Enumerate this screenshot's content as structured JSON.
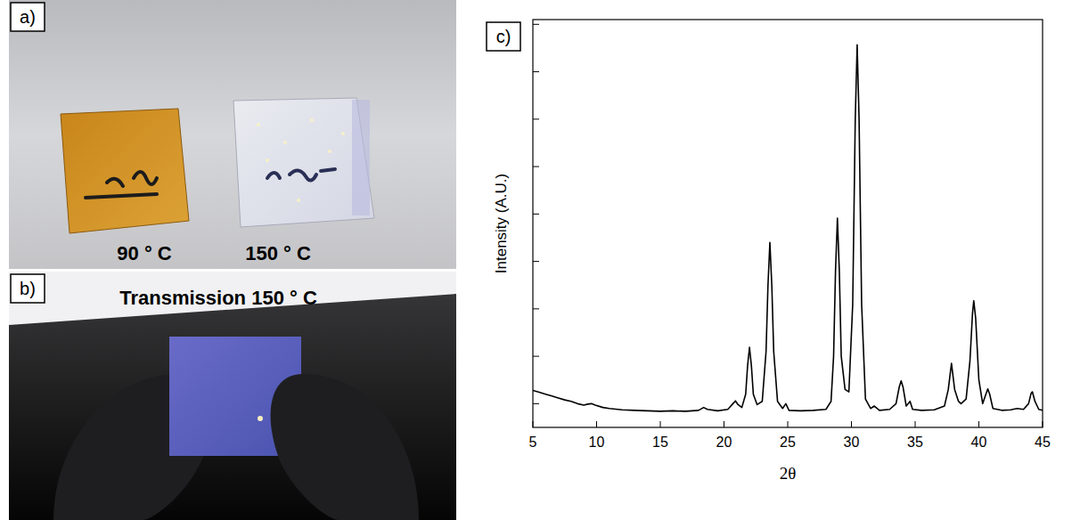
{
  "figure": {
    "panels": [
      {
        "letter": "a)",
        "labels": [
          "90 ° C",
          "150 ° C"
        ]
      },
      {
        "letter": "b)",
        "title": "Transmission 150 ° C"
      },
      {
        "letter": "c)"
      }
    ]
  },
  "chart_data": {
    "type": "line",
    "color": "#000000",
    "x_label": "2θ",
    "y_label": "Intensity (A.U.)",
    "xlim": [
      5,
      45
    ],
    "xticks": [
      5,
      10,
      15,
      20,
      25,
      30,
      35,
      40,
      45
    ],
    "ylim": [
      0,
      8.6
    ],
    "yticks": [
      0.5,
      1.5,
      2.5,
      3.5,
      4.5,
      5.5,
      6.5,
      7.5,
      8.5
    ],
    "tick_labels": "x",
    "x": [
      5.0,
      5.5,
      6.0,
      6.5,
      7.0,
      7.5,
      8.0,
      8.5,
      9.0,
      9.3,
      9.6,
      9.9,
      10.5,
      11.0,
      12.0,
      13.0,
      14.0,
      15.0,
      16.0,
      17.0,
      18.0,
      18.4,
      18.7,
      19.5,
      20.3,
      20.7,
      20.9,
      21.1,
      21.4,
      21.7,
      21.85,
      22.0,
      22.15,
      22.3,
      22.6,
      23.0,
      23.3,
      23.45,
      23.6,
      23.75,
      23.9,
      24.2,
      24.6,
      24.85,
      25.1,
      26.0,
      27.0,
      28.0,
      28.4,
      28.6,
      28.75,
      28.9,
      29.05,
      29.2,
      29.5,
      29.8,
      30.1,
      30.3,
      30.45,
      30.6,
      30.8,
      31.1,
      31.5,
      31.8,
      32.2,
      33.0,
      33.5,
      33.75,
      33.9,
      34.05,
      34.3,
      34.6,
      34.8,
      35.5,
      36.5,
      37.3,
      37.6,
      37.85,
      38.1,
      38.4,
      38.6,
      39.0,
      39.3,
      39.5,
      39.6,
      39.75,
      40.0,
      40.3,
      40.55,
      40.7,
      40.85,
      41.1,
      41.8,
      42.5,
      43.0,
      43.5,
      43.9,
      44.1,
      44.2,
      44.4,
      44.7,
      45.0
    ],
    "values": [
      0.78,
      0.74,
      0.7,
      0.66,
      0.62,
      0.58,
      0.55,
      0.5,
      0.47,
      0.49,
      0.5,
      0.47,
      0.42,
      0.4,
      0.37,
      0.36,
      0.35,
      0.34,
      0.35,
      0.34,
      0.36,
      0.42,
      0.38,
      0.35,
      0.38,
      0.5,
      0.56,
      0.48,
      0.42,
      0.7,
      1.3,
      1.69,
      1.3,
      0.7,
      0.48,
      0.55,
      1.6,
      3.0,
      3.9,
      3.0,
      1.6,
      0.55,
      0.4,
      0.5,
      0.36,
      0.35,
      0.36,
      0.38,
      0.55,
      1.5,
      3.3,
      4.41,
      3.3,
      1.5,
      0.8,
      0.75,
      2.6,
      6.5,
      8.07,
      6.5,
      2.6,
      0.6,
      0.4,
      0.45,
      0.36,
      0.38,
      0.5,
      0.85,
      0.98,
      0.85,
      0.45,
      0.55,
      0.38,
      0.36,
      0.37,
      0.45,
      0.8,
      1.35,
      0.8,
      0.55,
      0.5,
      0.6,
      1.4,
      2.4,
      2.67,
      2.3,
      1.0,
      0.5,
      0.7,
      0.81,
      0.7,
      0.4,
      0.36,
      0.37,
      0.4,
      0.38,
      0.5,
      0.72,
      0.75,
      0.55,
      0.38,
      0.36
    ]
  }
}
